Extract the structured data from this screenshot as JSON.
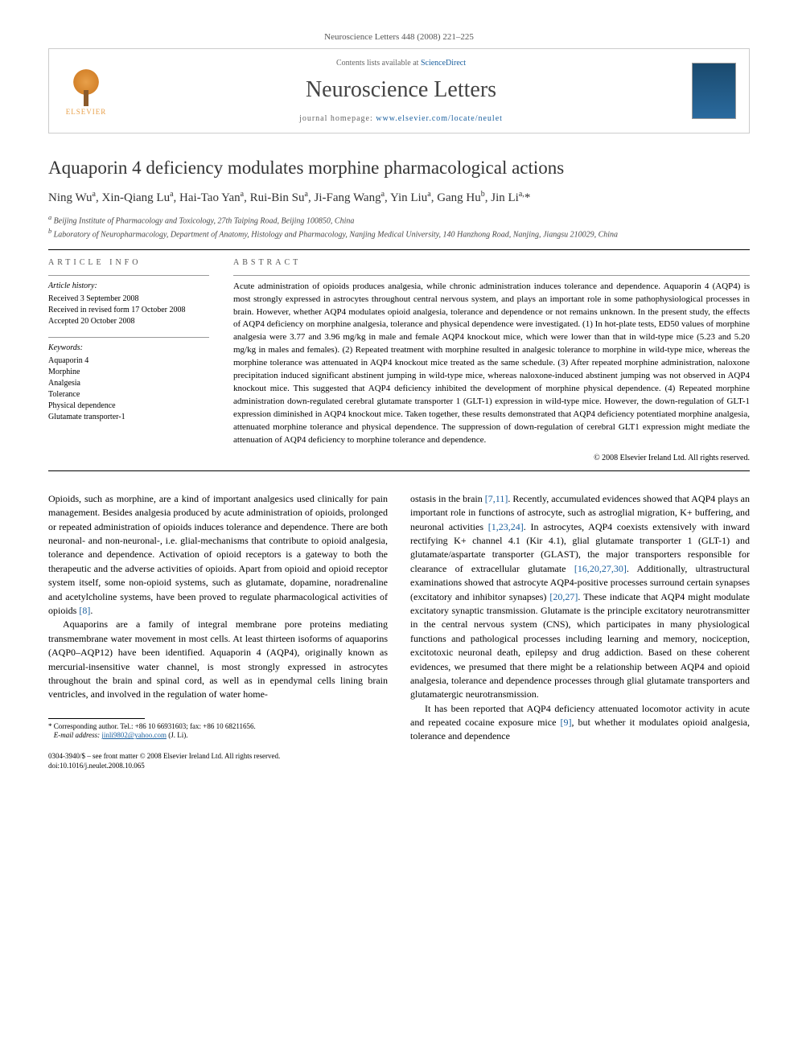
{
  "header": {
    "citation": "Neuroscience Letters 448 (2008) 221–225",
    "contents_prefix": "Contents lists available at ",
    "contents_link": "ScienceDirect",
    "journal_name": "Neuroscience Letters",
    "homepage_prefix": "journal homepage: ",
    "homepage_url": "www.elsevier.com/locate/neulet",
    "publisher_name": "ELSEVIER"
  },
  "article": {
    "title": "Aquaporin 4 deficiency modulates morphine pharmacological actions",
    "authors_html": "Ning Wu<sup>a</sup>, Xin-Qiang Lu<sup>a</sup>, Hai-Tao Yan<sup>a</sup>, Rui-Bin Su<sup>a</sup>, Ji-Fang Wang<sup>a</sup>, Yin Liu<sup>a</sup>, Gang Hu<sup>b</sup>, Jin Li<sup>a,</sup>*",
    "affiliations": {
      "a": "Beijing Institute of Pharmacology and Toxicology, 27th Taiping Road, Beijing 100850, China",
      "b": "Laboratory of Neuropharmacology, Department of Anatomy, Histology and Pharmacology, Nanjing Medical University, 140 Hanzhong Road, Nanjing, Jiangsu 210029, China"
    }
  },
  "info": {
    "heading": "article info",
    "history_label": "Article history:",
    "received": "Received 3 September 2008",
    "revised": "Received in revised form 17 October 2008",
    "accepted": "Accepted 20 October 2008",
    "keywords_label": "Keywords:",
    "keywords": [
      "Aquaporin 4",
      "Morphine",
      "Analgesia",
      "Tolerance",
      "Physical dependence",
      "Glutamate transporter-1"
    ]
  },
  "abstract": {
    "heading": "abstract",
    "text": "Acute administration of opioids produces analgesia, while chronic administration induces tolerance and dependence. Aquaporin 4 (AQP4) is most strongly expressed in astrocytes throughout central nervous system, and plays an important role in some pathophysiological processes in brain. However, whether AQP4 modulates opioid analgesia, tolerance and dependence or not remains unknown. In the present study, the effects of AQP4 deficiency on morphine analgesia, tolerance and physical dependence were investigated. (1) In hot-plate tests, ED50 values of morphine analgesia were 3.77 and 3.96 mg/kg in male and female AQP4 knockout mice, which were lower than that in wild-type mice (5.23 and 5.20 mg/kg in males and females). (2) Repeated treatment with morphine resulted in analgesic tolerance to morphine in wild-type mice, whereas the morphine tolerance was attenuated in AQP4 knockout mice treated as the same schedule. (3) After repeated morphine administration, naloxone precipitation induced significant abstinent jumping in wild-type mice, whereas naloxone-induced abstinent jumping was not observed in AQP4 knockout mice. This suggested that AQP4 deficiency inhibited the development of morphine physical dependence. (4) Repeated morphine administration down-regulated cerebral glutamate transporter 1 (GLT-1) expression in wild-type mice. However, the down-regulation of GLT-1 expression diminished in AQP4 knockout mice. Taken together, these results demonstrated that AQP4 deficiency potentiated morphine analgesia, attenuated morphine tolerance and physical dependence. The suppression of down-regulation of cerebral GLT1 expression might mediate the attenuation of AQP4 deficiency to morphine tolerance and dependence.",
    "copyright": "© 2008 Elsevier Ireland Ltd. All rights reserved."
  },
  "body": {
    "p1": "Opioids, such as morphine, are a kind of important analgesics used clinically for pain management. Besides analgesia produced by acute administration of opioids, prolonged or repeated administration of opioids induces tolerance and dependence. There are both neuronal- and non-neuronal-, i.e. glial-mechanisms that contribute to opioid analgesia, tolerance and dependence. Activation of opioid receptors is a gateway to both the therapeutic and the adverse activities of opioids. Apart from opioid and opioid receptor system itself, some non-opioid systems, such as glutamate, dopamine, noradrenaline and acetylcholine systems, have been proved to regulate pharmacological activities of opioids ",
    "p1_ref": "[8]",
    "p1_end": ".",
    "p2": "Aquaporins are a family of integral membrane pore proteins mediating transmembrane water movement in most cells. At least thirteen isoforms of aquaporins (AQP0–AQP12) have been identified. Aquaporin 4 (AQP4), originally known as mercurial-insensitive water channel, is most strongly expressed in astrocytes throughout the brain and spinal cord, as well as in ependymal cells lining brain ventricles, and involved in the regulation of water home-",
    "p3a": "ostasis in the brain ",
    "p3_ref1": "[7,11]",
    "p3b": ". Recently, accumulated evidences showed that AQP4 plays an important role in functions of astrocyte, such as astroglial migration, K+ buffering, and neuronal activities ",
    "p3_ref2": "[1,23,24]",
    "p3c": ". In astrocytes, AQP4 coexists extensively with inward rectifying K+ channel 4.1 (Kir 4.1), glial glutamate transporter 1 (GLT-1) and glutamate/aspartate transporter (GLAST), the major transporters responsible for clearance of extracellular glutamate ",
    "p3_ref3": "[16,20,27,30]",
    "p3d": ". Additionally, ultrastructural examinations showed that astrocyte AQP4-positive processes surround certain synapses (excitatory and inhibitor synapses) ",
    "p3_ref4": "[20,27]",
    "p3e": ". These indicate that AQP4 might modulate excitatory synaptic transmission. Glutamate is the principle excitatory neurotransmitter in the central nervous system (CNS), which participates in many physiological functions and pathological processes including learning and memory, nociception, excitotoxic neuronal death, epilepsy and drug addiction. Based on these coherent evidences, we presumed that there might be a relationship between AQP4 and opioid analgesia, tolerance and dependence processes through glial glutamate transporters and glutamatergic neurotransmission.",
    "p4a": "It has been reported that AQP4 deficiency attenuated locomotor activity in acute and repeated cocaine exposure mice ",
    "p4_ref": "[9]",
    "p4b": ", but whether it modulates opioid analgesia, tolerance and dependence"
  },
  "footnote": {
    "marker": "*",
    "label": "Corresponding author. Tel.: +86 10 66931603; fax: +86 10 68211656.",
    "email_label": "E-mail address:",
    "email": "jinli9802@yahoo.com",
    "email_who": "(J. Li)."
  },
  "footer": {
    "issn_line": "0304-3940/$ – see front matter © 2008 Elsevier Ireland Ltd. All rights reserved.",
    "doi": "doi:10.1016/j.neulet.2008.10.065"
  },
  "colors": {
    "link": "#1a5f9e",
    "text": "#000000",
    "muted": "#555555"
  }
}
